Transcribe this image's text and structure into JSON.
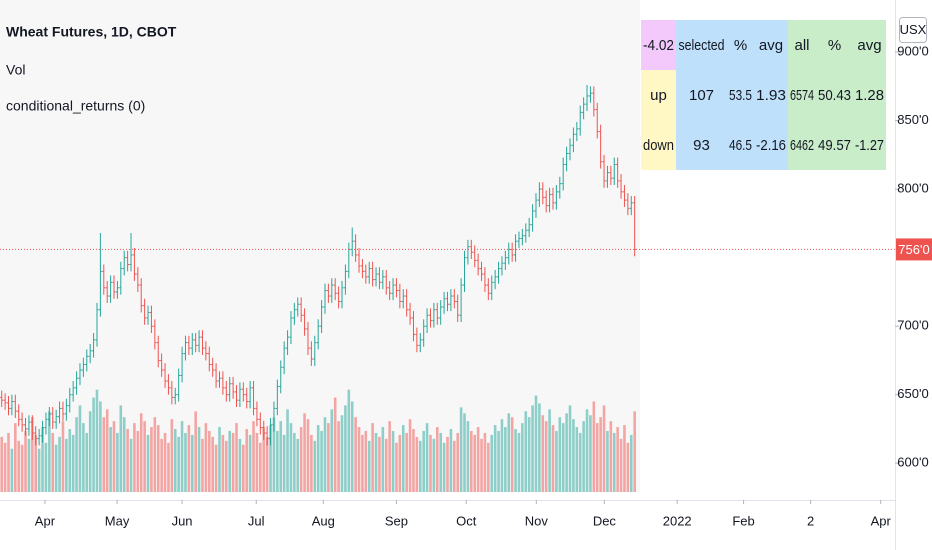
{
  "chart_data": {
    "type": "ohlc",
    "title": "Wheat Futures, 1D, CBOT",
    "legend_items": [
      "Vol",
      "conditional_returns (0)"
    ],
    "open": [
      648,
      646,
      644,
      640,
      645,
      638,
      632,
      628,
      625,
      630,
      622,
      618,
      620,
      626,
      632,
      636,
      630,
      634,
      640,
      636,
      642,
      650,
      655,
      662,
      668,
      672,
      678,
      682,
      690,
      712,
      740,
      728,
      722,
      732,
      725,
      728,
      742,
      750,
      745,
      752,
      738,
      730,
      715,
      706,
      710,
      700,
      688,
      675,
      668,
      660,
      655,
      648,
      650,
      664,
      680,
      688,
      684,
      690,
      686,
      692,
      684,
      680,
      672,
      668,
      660,
      662,
      655,
      650,
      658,
      652,
      646,
      654,
      650,
      645,
      655,
      640,
      632,
      626,
      622,
      618,
      628,
      640,
      656,
      670,
      684,
      692,
      706,
      712,
      716,
      708,
      698,
      684,
      676,
      688,
      700,
      714,
      726,
      722,
      730,
      724,
      718,
      728,
      740,
      756,
      762,
      752,
      744,
      740,
      736,
      742,
      734,
      738,
      732,
      736,
      728,
      724,
      730,
      726,
      718,
      722,
      712,
      706,
      694,
      686,
      690,
      700,
      708,
      704,
      712,
      706,
      714,
      720,
      716,
      722,
      718,
      708,
      730,
      750,
      758,
      754,
      748,
      742,
      738,
      730,
      724,
      732,
      736,
      742,
      746,
      750,
      756,
      752,
      762,
      764,
      766,
      770,
      774,
      784,
      792,
      800,
      794,
      788,
      796,
      790,
      798,
      804,
      818,
      826,
      832,
      840,
      844,
      856,
      862,
      868,
      870,
      858,
      842,
      820,
      806,
      812,
      808,
      818,
      806,
      798,
      792,
      786,
      790
    ],
    "high": [
      653,
      651,
      649,
      650,
      650,
      643,
      637,
      633,
      635,
      635,
      627,
      625,
      631,
      637,
      641,
      641,
      639,
      645,
      645,
      647,
      655,
      660,
      667,
      673,
      677,
      683,
      687,
      695,
      717,
      768,
      745,
      733,
      737,
      737,
      733,
      747,
      755,
      755,
      768,
      757,
      743,
      735,
      720,
      715,
      715,
      705,
      693,
      680,
      673,
      665,
      660,
      655,
      669,
      685,
      693,
      693,
      695,
      695,
      697,
      697,
      689,
      685,
      677,
      673,
      667,
      667,
      660,
      663,
      663,
      657,
      659,
      659,
      655,
      660,
      660,
      645,
      637,
      631,
      627,
      633,
      645,
      661,
      675,
      689,
      697,
      711,
      717,
      721,
      721,
      713,
      703,
      689,
      693,
      705,
      719,
      731,
      731,
      735,
      735,
      729,
      733,
      745,
      761,
      772,
      767,
      757,
      749,
      745,
      747,
      747,
      743,
      743,
      741,
      741,
      733,
      735,
      735,
      731,
      727,
      727,
      717,
      711,
      699,
      695,
      705,
      713,
      713,
      717,
      717,
      719,
      725,
      725,
      727,
      727,
      723,
      735,
      755,
      763,
      763,
      759,
      753,
      747,
      743,
      735,
      737,
      741,
      747,
      751,
      755,
      761,
      761,
      767,
      769,
      771,
      775,
      779,
      789,
      797,
      805,
      805,
      799,
      801,
      801,
      803,
      809,
      823,
      831,
      837,
      845,
      849,
      861,
      867,
      876,
      875,
      875,
      863,
      847,
      825,
      817,
      817,
      823,
      823,
      811,
      803,
      797,
      795,
      795
    ],
    "low": [
      641,
      639,
      635,
      635,
      633,
      627,
      623,
      620,
      620,
      617,
      613,
      613,
      615,
      621,
      627,
      625,
      625,
      629,
      631,
      631,
      637,
      645,
      650,
      657,
      663,
      667,
      673,
      677,
      685,
      707,
      723,
      717,
      717,
      720,
      720,
      723,
      737,
      740,
      740,
      733,
      725,
      710,
      701,
      701,
      695,
      683,
      670,
      663,
      655,
      650,
      643,
      643,
      645,
      659,
      675,
      679,
      679,
      681,
      681,
      679,
      675,
      667,
      663,
      655,
      655,
      650,
      645,
      645,
      647,
      641,
      641,
      645,
      640,
      640,
      635,
      627,
      621,
      617,
      613,
      613,
      623,
      635,
      651,
      665,
      679,
      687,
      701,
      707,
      703,
      693,
      679,
      671,
      671,
      683,
      695,
      709,
      717,
      717,
      719,
      713,
      713,
      723,
      735,
      751,
      747,
      739,
      735,
      731,
      731,
      729,
      729,
      727,
      727,
      723,
      719,
      719,
      721,
      713,
      713,
      707,
      701,
      689,
      681,
      681,
      685,
      695,
      699,
      699,
      701,
      701,
      709,
      711,
      711,
      713,
      703,
      703,
      725,
      745,
      749,
      743,
      737,
      733,
      725,
      719,
      719,
      727,
      731,
      737,
      741,
      745,
      747,
      747,
      757,
      759,
      761,
      765,
      769,
      779,
      787,
      789,
      783,
      783,
      785,
      785,
      793,
      799,
      813,
      821,
      827,
      835,
      839,
      851,
      857,
      863,
      853,
      837,
      815,
      801,
      801,
      803,
      803,
      801,
      793,
      787,
      781,
      781,
      751
    ],
    "close": [
      646,
      644,
      640,
      645,
      638,
      632,
      628,
      625,
      630,
      622,
      618,
      620,
      626,
      632,
      636,
      630,
      634,
      640,
      636,
      642,
      650,
      655,
      662,
      668,
      672,
      678,
      682,
      690,
      712,
      740,
      728,
      722,
      732,
      725,
      728,
      742,
      750,
      745,
      752,
      738,
      730,
      715,
      706,
      710,
      700,
      688,
      675,
      668,
      660,
      655,
      648,
      650,
      664,
      680,
      688,
      684,
      690,
      686,
      692,
      684,
      680,
      672,
      668,
      660,
      662,
      655,
      650,
      658,
      652,
      646,
      654,
      650,
      645,
      655,
      640,
      632,
      626,
      622,
      618,
      628,
      640,
      656,
      670,
      684,
      692,
      706,
      712,
      716,
      708,
      698,
      684,
      676,
      688,
      700,
      714,
      726,
      722,
      730,
      724,
      718,
      728,
      740,
      756,
      762,
      752,
      744,
      740,
      736,
      742,
      734,
      738,
      732,
      736,
      728,
      724,
      730,
      726,
      718,
      722,
      712,
      706,
      694,
      686,
      690,
      700,
      708,
      704,
      712,
      706,
      714,
      720,
      716,
      722,
      718,
      708,
      730,
      750,
      758,
      754,
      748,
      742,
      738,
      730,
      724,
      732,
      736,
      742,
      746,
      750,
      756,
      752,
      762,
      764,
      766,
      770,
      774,
      784,
      792,
      800,
      794,
      788,
      796,
      790,
      798,
      804,
      818,
      826,
      832,
      840,
      844,
      856,
      862,
      868,
      870,
      858,
      842,
      820,
      806,
      812,
      808,
      818,
      806,
      798,
      792,
      786,
      790,
      756
    ],
    "volume": [
      28,
      25,
      30,
      22,
      35,
      26,
      24,
      31,
      27,
      38,
      29,
      22,
      33,
      25,
      41,
      30,
      24,
      28,
      36,
      27,
      32,
      29,
      38,
      44,
      35,
      30,
      41,
      48,
      52,
      46,
      38,
      42,
      33,
      36,
      30,
      44,
      38,
      32,
      27,
      35,
      31,
      40,
      36,
      29,
      33,
      38,
      34,
      27,
      30,
      25,
      37,
      32,
      28,
      36,
      30,
      34,
      29,
      41,
      33,
      27,
      35,
      31,
      28,
      24,
      33,
      29,
      26,
      31,
      30,
      35,
      27,
      24,
      32,
      29,
      36,
      30,
      25,
      33,
      28,
      34,
      38,
      31,
      36,
      29,
      42,
      35,
      30,
      27,
      33,
      40,
      37,
      29,
      26,
      34,
      31,
      38,
      35,
      42,
      48,
      36,
      39,
      44,
      52,
      46,
      38,
      33,
      29,
      31,
      26,
      35,
      30,
      28,
      33,
      27,
      36,
      31,
      25,
      29,
      34,
      30,
      37,
      32,
      28,
      26,
      31,
      35,
      29,
      27,
      33,
      30,
      25,
      28,
      32,
      26,
      30,
      43,
      40,
      36,
      31,
      29,
      33,
      27,
      30,
      25,
      29,
      34,
      31,
      37,
      33,
      40,
      38,
      32,
      30,
      35,
      41,
      38,
      44,
      49,
      45,
      39,
      36,
      42,
      34,
      31,
      38,
      35,
      40,
      44,
      37,
      33,
      30,
      36,
      42,
      39,
      46,
      35,
      38,
      44,
      31,
      36,
      30,
      33,
      27,
      34,
      25,
      29,
      41
    ],
    "ylim": [
      579,
      938
    ],
    "yticks": [
      {
        "value": 600,
        "label": "600'0"
      },
      {
        "value": 650,
        "label": "650'0"
      },
      {
        "value": 700,
        "label": "700'0"
      },
      {
        "value": 800,
        "label": "800'0"
      },
      {
        "value": 850,
        "label": "850'0"
      },
      {
        "value": 900,
        "label": "900'0"
      }
    ],
    "y2lim": [
      0,
      250
    ],
    "xlim": [
      0,
      263
    ],
    "xticks": [
      {
        "value": 13.2,
        "label": "Apr"
      },
      {
        "value": 34.4,
        "label": "May"
      },
      {
        "value": 53.5,
        "label": "Jun"
      },
      {
        "value": 75.3,
        "label": "Jul"
      },
      {
        "value": 95,
        "label": "Aug"
      },
      {
        "value": 116.5,
        "label": "Sep"
      },
      {
        "value": 137,
        "label": "Oct"
      },
      {
        "value": 157.6,
        "label": "Nov"
      },
      {
        "value": 177.6,
        "label": "Dec"
      },
      {
        "value": 199,
        "label": "2022"
      },
      {
        "value": 218.5,
        "label": "Feb"
      },
      {
        "value": 238.2,
        "label": "2"
      },
      {
        "value": 258.8,
        "label": "Apr"
      }
    ],
    "up_color": "#26a69a",
    "down_color": "#ef5350",
    "price_label": {
      "value": 756,
      "label": "756'0"
    }
  },
  "table": {
    "header": [
      -4.02,
      "selected",
      "%",
      "avg",
      "all",
      "%",
      "avg"
    ],
    "rows": [
      [
        "up",
        107,
        53.5,
        1.93,
        6574,
        50.43,
        1.28
      ],
      [
        "down",
        93,
        46.5,
        -2.16,
        6462,
        49.57,
        -1.27
      ]
    ]
  },
  "toolbar": {
    "currency": "USX"
  }
}
